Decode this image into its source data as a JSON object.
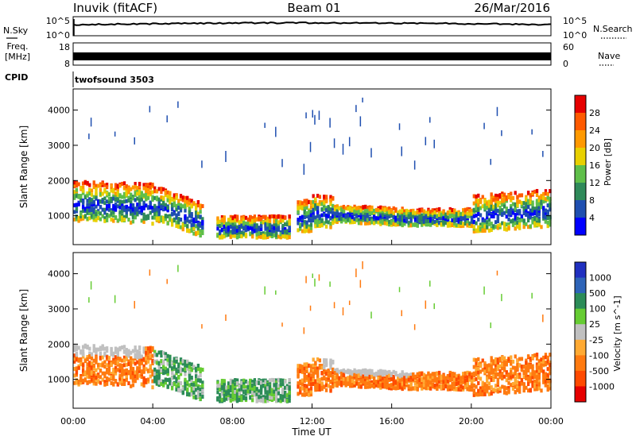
{
  "header": {
    "station": "Inuvik (fitACF)",
    "beam": "Beam 01",
    "date": "26/Mar/2016"
  },
  "strip_labels": {
    "nsky": "N.Sky",
    "nsearch": "N.Search",
    "freq_line1": "Freq.",
    "freq_line2": "[MHz]",
    "nave": "Nave",
    "cpid": "CPID",
    "cpid_value": "twofsound 3503"
  },
  "strip_ticks": {
    "nsky_left": [
      "10^5",
      "10^0"
    ],
    "nsky_right": [
      "10^5",
      "10^0"
    ],
    "freq_left": [
      "18",
      "8"
    ],
    "nave_right": [
      "60",
      "0"
    ]
  },
  "colors": {
    "power": [
      "#0000ff",
      "#1f4fb0",
      "#2f8a5a",
      "#5fbf4a",
      "#e8d000",
      "#ff9900",
      "#ff5a00",
      "#e60000"
    ],
    "velocity": [
      "#2030c0",
      "#2e64b8",
      "#2c8c58",
      "#66cc33",
      "#c0c0c0",
      "#ffaa33",
      "#ff7a10",
      "#ff4a00",
      "#e60000"
    ]
  },
  "chart_data": [
    {
      "type": "heatmap",
      "title": "Power",
      "ylabel": "Slant Range [km]",
      "xlabel": "",
      "x_range_hours": [
        0,
        24
      ],
      "ylim": [
        180,
        4600
      ],
      "yticks": [
        1000,
        2000,
        3000,
        4000
      ],
      "colorbar_label": "Power [dB]",
      "colorbar_ticks": [
        "4",
        "8",
        "12",
        "16",
        "20",
        "24",
        "28"
      ]
    },
    {
      "type": "heatmap",
      "title": "Velocity",
      "ylabel": "Slant Range [km]",
      "xlabel": "Time UT",
      "x_range_hours": [
        0,
        24
      ],
      "xticks": [
        "00:00",
        "04:00",
        "08:00",
        "12:00",
        "16:00",
        "20:00",
        "00:00"
      ],
      "ylim": [
        180,
        4600
      ],
      "yticks": [
        1000,
        2000,
        3000,
        4000
      ],
      "colorbar_label": "Velocity [m s^-1]",
      "colorbar_ticks": [
        "1000",
        "500",
        "100",
        "25",
        "-25",
        "-100",
        "-500",
        "-1000"
      ]
    }
  ]
}
